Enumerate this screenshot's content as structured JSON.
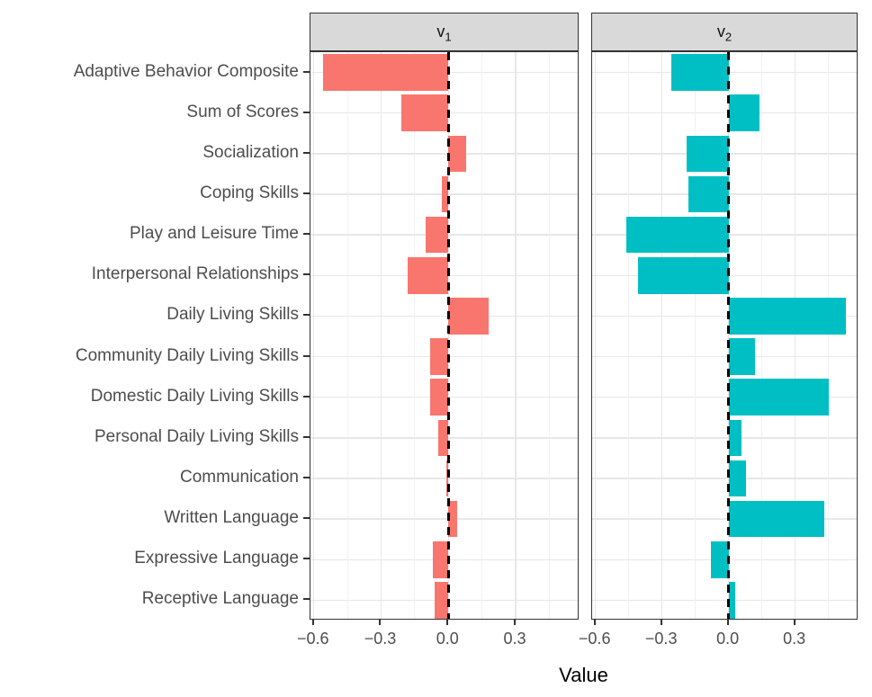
{
  "chart_data": {
    "type": "bar",
    "orientation": "horizontal",
    "title": "",
    "xlabel": "Value",
    "legend": "none",
    "grid": true,
    "categories": [
      "Adaptive Behavior Composite",
      "Sum of Scores",
      "Socialization",
      "Coping Skills",
      "Play and Leisure Time",
      "Interpersonal Relationships",
      "Daily Living Skills",
      "Community Daily Living Skills",
      "Domestic Daily Living Skills",
      "Personal Daily Living Skills",
      "Communication",
      "Written Language",
      "Expressive Language",
      "Receptive Language"
    ],
    "series": [
      {
        "name": "v1",
        "strip_label": "v",
        "strip_subscript": "1",
        "color": "#F8766D",
        "values": [
          -0.56,
          -0.21,
          0.08,
          -0.03,
          -0.1,
          -0.18,
          0.18,
          -0.08,
          -0.08,
          -0.045,
          -0.01,
          0.04,
          -0.07,
          -0.06
        ]
      },
      {
        "name": "v2",
        "strip_label": "v",
        "strip_subscript": "2",
        "color": "#00BFC4",
        "values": [
          -0.26,
          0.14,
          -0.19,
          -0.18,
          -0.46,
          -0.41,
          0.53,
          0.12,
          0.45,
          0.06,
          0.08,
          0.43,
          -0.08,
          0.03
        ]
      }
    ],
    "xlim": [
      -0.615,
      0.585
    ],
    "x_major_ticks": [
      -0.6,
      -0.3,
      0.0,
      0.3
    ],
    "x_tick_labels": [
      "−0.6",
      "−0.3",
      "0.0",
      "0.3"
    ],
    "x_minor_ticks": [
      -0.45,
      -0.15,
      0.15,
      0.45
    ],
    "zero_line": {
      "style": "dashed",
      "color": "#000000"
    }
  },
  "colors": {
    "bar_v1": "#F8766D",
    "bar_v2": "#00BFC4",
    "strip_fill": "#D9D9D9",
    "panel_border": "#333333",
    "grid_major": "#E7E7E7",
    "grid_minor": "#F1F1F1",
    "axis_text": "#4D4D4D",
    "zero_line": "#000000"
  }
}
